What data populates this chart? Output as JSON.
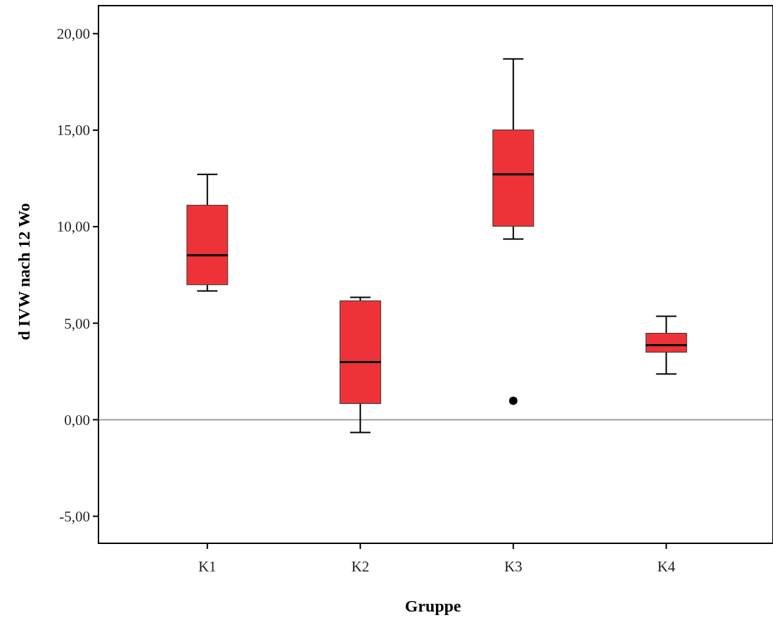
{
  "chart_data": {
    "type": "box",
    "xlabel": "Gruppe",
    "ylabel": "d IVW nach 12 Wo",
    "categories": [
      "K1",
      "K2",
      "K3",
      "K4"
    ],
    "series": [
      {
        "color": "#ee3338",
        "boxes": [
          {
            "low": 6.67,
            "q1": 6.99,
            "median": 8.52,
            "q3": 11.11,
            "high": 12.71
          },
          {
            "low": -0.66,
            "q1": 0.84,
            "median": 2.99,
            "q3": 6.16,
            "high": 6.34
          },
          {
            "low": 9.36,
            "q1": 10.02,
            "median": 12.71,
            "q3": 15.01,
            "high": 18.69,
            "outliers": [
              0.98
            ]
          },
          {
            "low": 2.37,
            "q1": 3.5,
            "median": 3.86,
            "q3": 4.48,
            "high": 5.36
          }
        ]
      }
    ],
    "ylim": [
      -6.4,
      21.45
    ],
    "yticks": [
      {
        "value": -5,
        "label": "-5,00"
      },
      {
        "value": 0,
        "label": "0,00"
      },
      {
        "value": 5,
        "label": "5,00"
      },
      {
        "value": 10,
        "label": "10,00"
      },
      {
        "value": 15,
        "label": "15,00"
      },
      {
        "value": 20,
        "label": "20,00"
      }
    ],
    "ref_lines": [
      {
        "axis": "y",
        "value": 0,
        "color": "#a0a0a0"
      }
    ],
    "grid": false
  }
}
